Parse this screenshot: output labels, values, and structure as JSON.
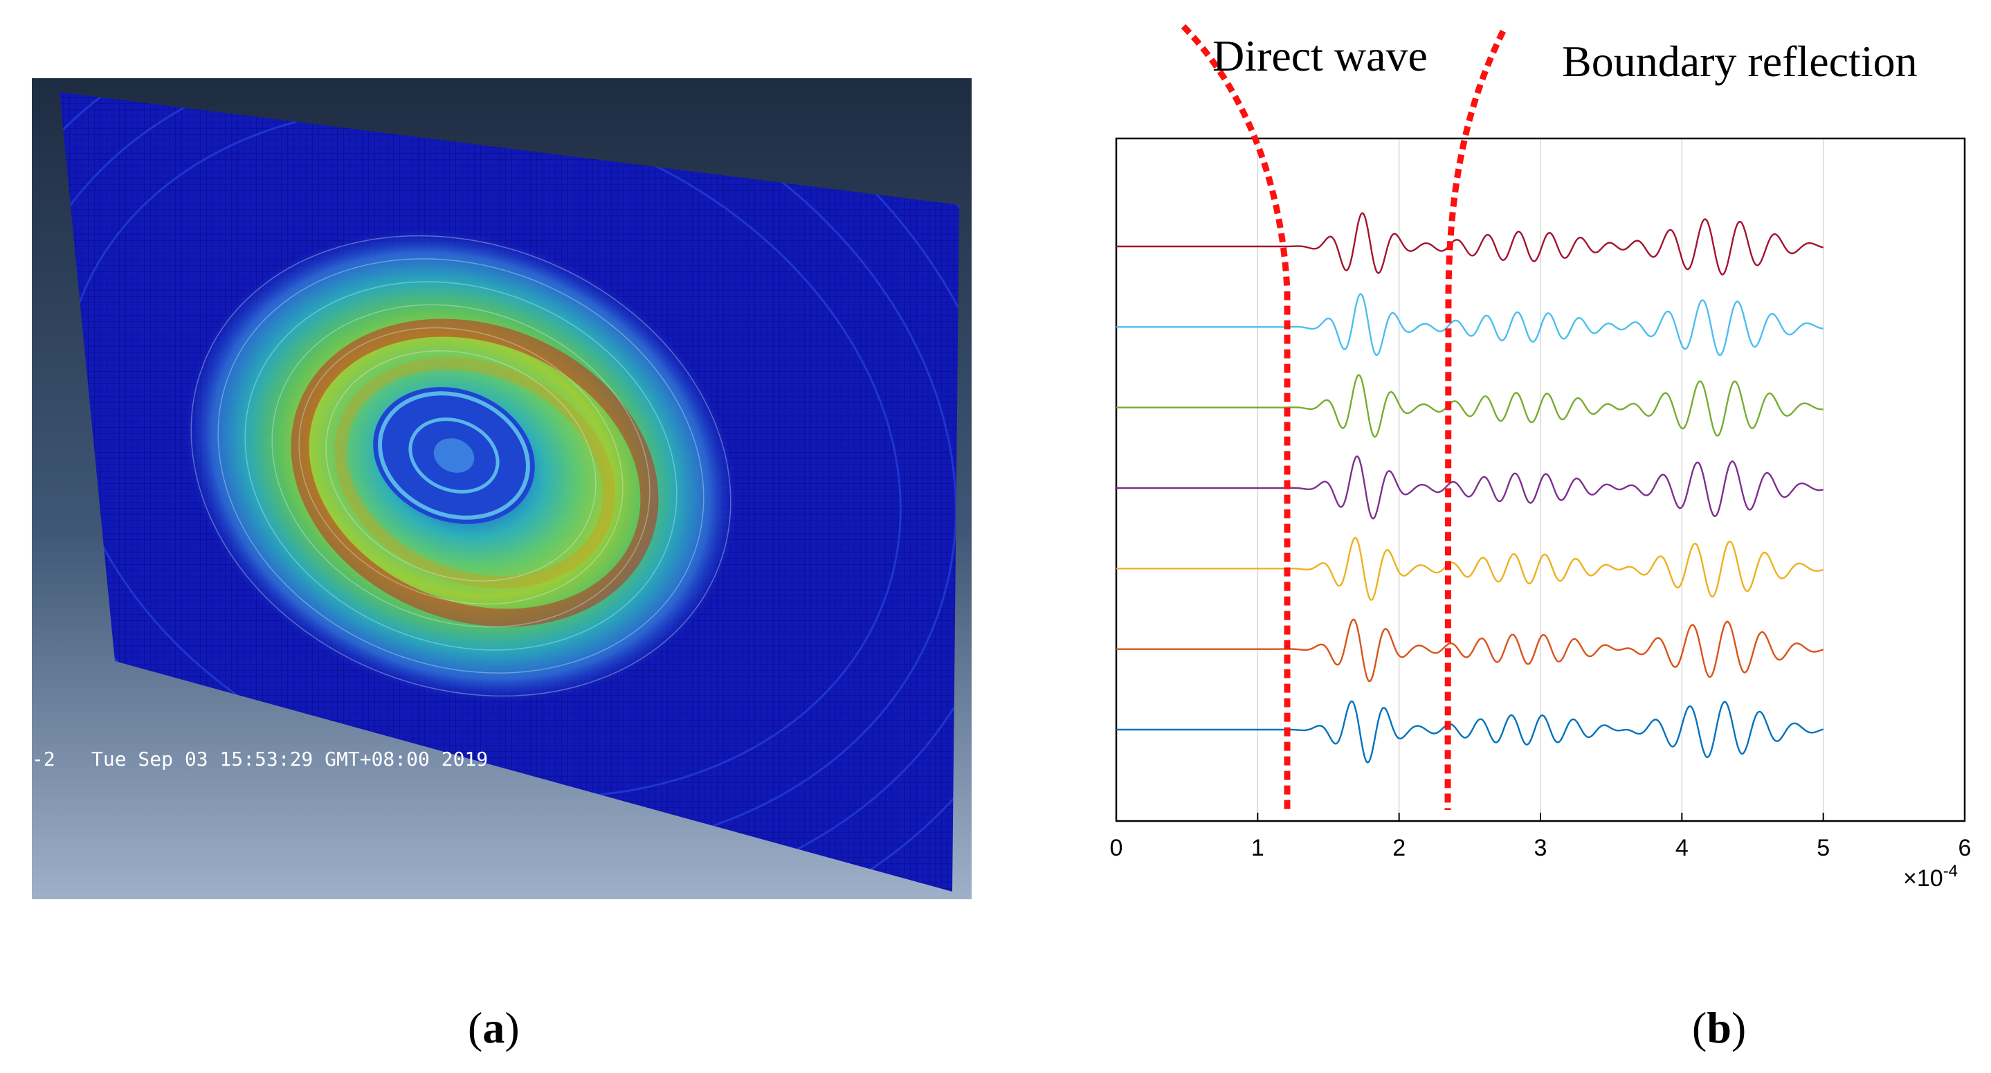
{
  "panel_a": {
    "caption_label": "a",
    "timestamp": "Tue Sep 03 15:53:29 GMT+08:00 2019",
    "timestamp_prefix": "-2"
  },
  "panel_b": {
    "caption_label": "b",
    "annotation_direct": "Direct wave",
    "annotation_reflection": "Boundary reflection",
    "exponent_label": "×10",
    "exponent_power": "-4"
  },
  "chart_data": {
    "type": "line",
    "title": "",
    "xlabel": "",
    "ylabel": "",
    "xlim": [
      0,
      6
    ],
    "x_ticks": [
      "0",
      "1",
      "2",
      "3",
      "4",
      "5",
      "6"
    ],
    "x_multiplier": "×10^-4",
    "grid": "vertical",
    "time_range_of_signals": [
      0,
      5
    ],
    "direct_wave_arrival": 1.2,
    "boundary_reflection_arrival": 2.35,
    "series": [
      {
        "color": "#a2142f",
        "offset": 6
      },
      {
        "color": "#4dbeee",
        "offset": 5
      },
      {
        "color": "#77ac30",
        "offset": 4
      },
      {
        "color": "#7e2f8e",
        "offset": 3
      },
      {
        "color": "#edb120",
        "offset": 2
      },
      {
        "color": "#d95319",
        "offset": 1
      },
      {
        "color": "#0072bd",
        "offset": 0
      }
    ]
  }
}
